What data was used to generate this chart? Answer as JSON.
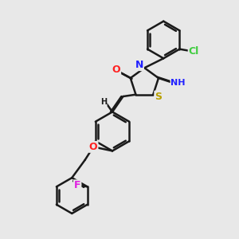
{
  "bg_color": "#e8e8e8",
  "bond_color": "#1a1a1a",
  "bond_width": 1.8,
  "atom_colors": {
    "O": "#ff2020",
    "N": "#2020ff",
    "S": "#b8a000",
    "Cl": "#40cc40",
    "F": "#e020e0",
    "C": "#1a1a1a",
    "H": "#1a1a1a"
  },
  "font_size": 8,
  "fig_size": [
    3.0,
    3.0
  ],
  "dpi": 100,
  "xlim": [
    0,
    10
  ],
  "ylim": [
    0,
    10
  ]
}
